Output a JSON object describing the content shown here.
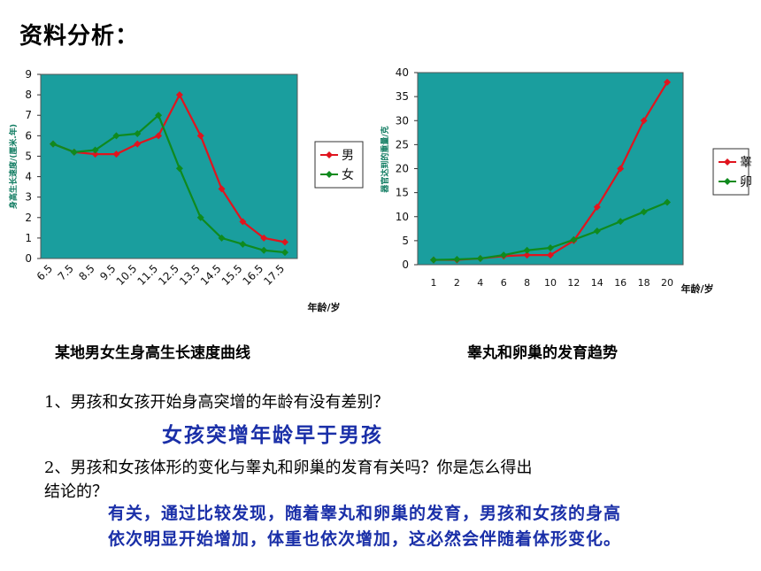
{
  "page": {
    "title": "资料分析：",
    "caption_left": "某地男女生身高生长速度曲线",
    "caption_right": "睾丸和卵巢的发育趋势",
    "q1": "1、男孩和女孩开始身高突增的年龄有没有差别？",
    "a1": "女孩突增年龄早于男孩",
    "q2_line1": "2、男孩和女孩体形的变化与睾丸和卵巢的发育有关吗？你是怎么得出",
    "q2_line2": "结论的？",
    "a2_line1": "有关，通过比较发现，随着睾丸和卵巢的发育，男孩和女孩的身高",
    "a2_line2": "依次明显开始增加，体重也依次增加，这必然会伴随着体形变化。"
  },
  "chart_data": [
    {
      "type": "line",
      "title": "",
      "xlabel": "年龄/岁",
      "ylabel": "身高生长速度/(厘米.年)",
      "categories": [
        "6.5",
        "7.5",
        "8.5",
        "9.5",
        "10.5",
        "11.5",
        "12.5",
        "13.5",
        "14.5",
        "15.5",
        "16.5",
        "17.5"
      ],
      "ylim": [
        0,
        9
      ],
      "yticks": [
        "0",
        "1",
        "2",
        "3",
        "4",
        "5",
        "6",
        "7",
        "8",
        "9"
      ],
      "series": [
        {
          "name": "男",
          "color": "#e0141e",
          "values": [
            5.6,
            5.2,
            5.1,
            5.1,
            5.6,
            6.0,
            8.0,
            6.0,
            3.4,
            1.8,
            1.0,
            0.8
          ]
        },
        {
          "name": "女",
          "color": "#0f8a1e",
          "values": [
            5.6,
            5.2,
            5.3,
            6.0,
            6.1,
            7.0,
            4.4,
            2.0,
            1.0,
            0.7,
            0.4,
            0.3
          ]
        }
      ],
      "legend": "right",
      "plot_bg": "#1a9e9e"
    },
    {
      "type": "line",
      "title": "",
      "xlabel": "年龄/岁",
      "ylabel": "器官达到的重量/克",
      "categories": [
        "1",
        "2",
        "4",
        "6",
        "8",
        "10",
        "12",
        "14",
        "16",
        "18",
        "20"
      ],
      "ylim": [
        0,
        40
      ],
      "yticks": [
        "0",
        "5",
        "10",
        "15",
        "20",
        "25",
        "30",
        "35",
        "40"
      ],
      "series": [
        {
          "name": "睾丸",
          "color": "#e0141e",
          "values": [
            1,
            1,
            1.3,
            1.8,
            2,
            2,
            5,
            12,
            20,
            30,
            38
          ]
        },
        {
          "name": "卵巢",
          "color": "#0f8a1e",
          "values": [
            1,
            1.1,
            1.3,
            2,
            3,
            3.5,
            5.2,
            7,
            9,
            11,
            13
          ]
        }
      ],
      "legend": "right",
      "plot_bg": "#1a9e9e"
    }
  ]
}
